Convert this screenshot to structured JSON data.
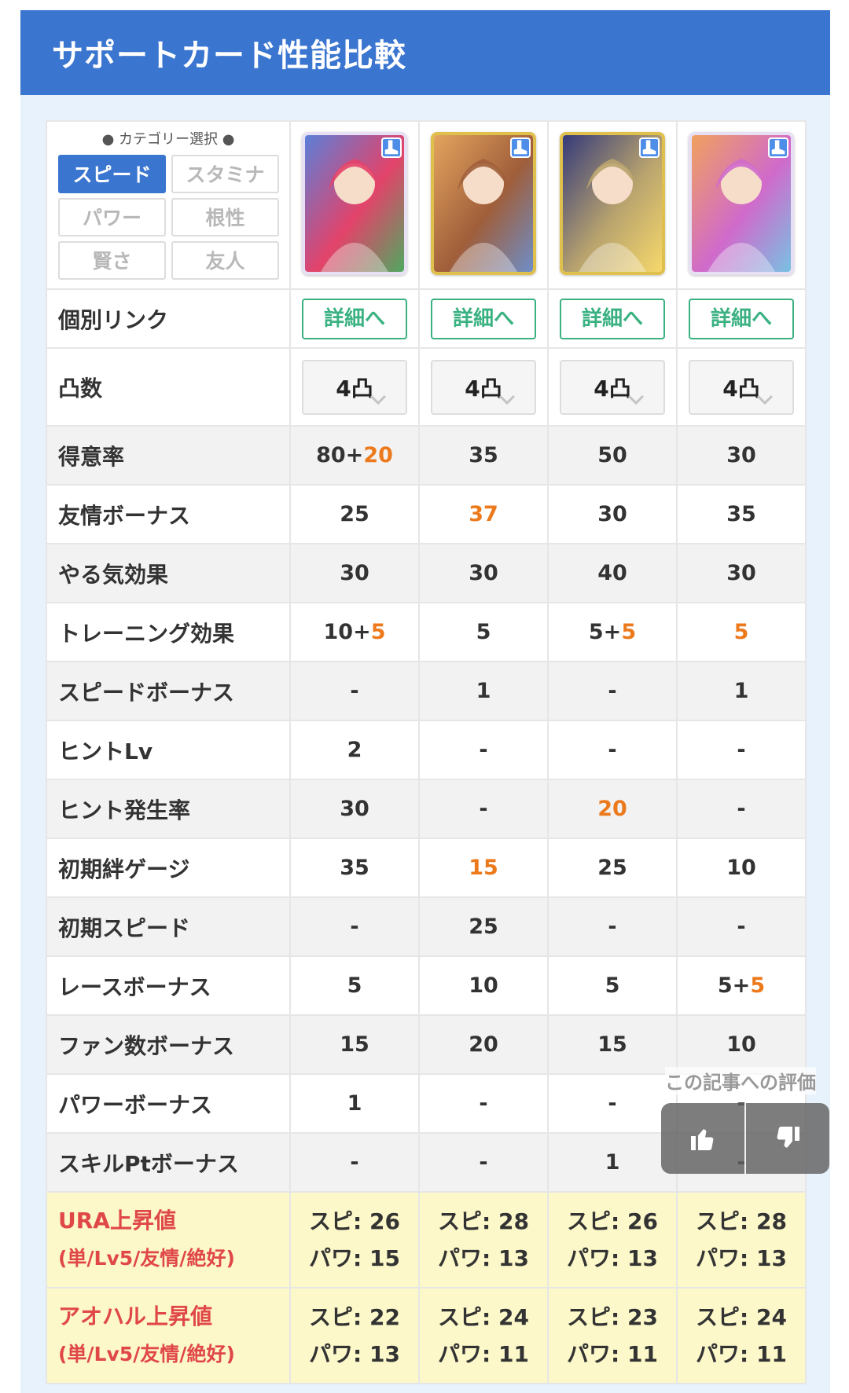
{
  "header": {
    "title": "サポートカード性能比較"
  },
  "category": {
    "title": "● カテゴリー選択 ●",
    "buttons": [
      "スピード",
      "スタミナ",
      "パワー",
      "根性",
      "賢さ",
      "友人"
    ],
    "active": "スピード"
  },
  "cards": [
    {
      "frame": "rainbow",
      "colors": [
        "#5b7fd9",
        "#e3436a",
        "#4fa860"
      ]
    },
    {
      "frame": "gold",
      "colors": [
        "#e3a45e",
        "#a05e3a",
        "#6e8ec8"
      ]
    },
    {
      "frame": "gold",
      "colors": [
        "#353a7a",
        "#b8a36e",
        "#f6d86b"
      ]
    },
    {
      "frame": "rainbow",
      "colors": [
        "#f0a15e",
        "#d06acb",
        "#78c1e3"
      ]
    }
  ],
  "links": {
    "label": "個別リンク",
    "button": "詳細へ"
  },
  "limit": {
    "label": "凸数",
    "values": [
      "4凸",
      "4凸",
      "4凸",
      "4凸"
    ]
  },
  "rows": [
    {
      "label": "得意率",
      "values": [
        [
          "80+",
          "20"
        ],
        [
          "35"
        ],
        [
          "50"
        ],
        [
          "30"
        ]
      ]
    },
    {
      "label": "友情ボーナス",
      "values": [
        [
          "25"
        ],
        [
          "",
          "37"
        ],
        [
          "30"
        ],
        [
          "35"
        ]
      ]
    },
    {
      "label": "やる気効果",
      "values": [
        [
          "30"
        ],
        [
          "30"
        ],
        [
          "40"
        ],
        [
          "30"
        ]
      ]
    },
    {
      "label": "トレーニング効果",
      "values": [
        [
          "10+",
          "5"
        ],
        [
          "5"
        ],
        [
          "5+",
          "5"
        ],
        [
          "",
          "5"
        ]
      ]
    },
    {
      "label": "スピードボーナス",
      "values": [
        [
          "-"
        ],
        [
          "1"
        ],
        [
          "-"
        ],
        [
          "1"
        ]
      ]
    },
    {
      "label": "ヒントLv",
      "values": [
        [
          "2"
        ],
        [
          "-"
        ],
        [
          "-"
        ],
        [
          "-"
        ]
      ]
    },
    {
      "label": "ヒント発生率",
      "values": [
        [
          "30"
        ],
        [
          "-"
        ],
        [
          "",
          "20"
        ],
        [
          "-"
        ]
      ]
    },
    {
      "label": "初期絆ゲージ",
      "values": [
        [
          "35"
        ],
        [
          "",
          "15"
        ],
        [
          "25"
        ],
        [
          "10"
        ]
      ]
    },
    {
      "label": "初期スピード",
      "values": [
        [
          "-"
        ],
        [
          "25"
        ],
        [
          "-"
        ],
        [
          "-"
        ]
      ]
    },
    {
      "label": "レースボーナス",
      "values": [
        [
          "5"
        ],
        [
          "10"
        ],
        [
          "5"
        ],
        [
          "5+",
          "5"
        ]
      ]
    },
    {
      "label": "ファン数ボーナス",
      "values": [
        [
          "15"
        ],
        [
          "20"
        ],
        [
          "15"
        ],
        [
          "10"
        ]
      ]
    },
    {
      "label": "パワーボーナス",
      "values": [
        [
          "1"
        ],
        [
          "-"
        ],
        [
          "-"
        ],
        [
          "-"
        ]
      ]
    },
    {
      "label": "スキルPtボーナス",
      "values": [
        [
          "-"
        ],
        [
          "-"
        ],
        [
          "1"
        ],
        [
          "-"
        ]
      ]
    }
  ],
  "yellow_rows": [
    {
      "label": "URA上昇値",
      "sub": "(単/Lv5/友情/絶好)",
      "values": [
        [
          "スピ: 26",
          "パワ: 15"
        ],
        [
          "スピ: 28",
          "パワ: 13"
        ],
        [
          "スピ: 26",
          "パワ: 13"
        ],
        [
          "スピ: 28",
          "パワ: 13"
        ]
      ]
    },
    {
      "label": "アオハル上昇値",
      "sub": "(単/Lv5/友情/絶好)",
      "values": [
        [
          "スピ: 22",
          "パワ: 13"
        ],
        [
          "スピ: 24",
          "パワ: 11"
        ],
        [
          "スピ: 23",
          "パワ: 11"
        ],
        [
          "スピ: 24",
          "パワ: 11"
        ]
      ]
    }
  ],
  "rating": {
    "label": "この記事への評価",
    "up_icon": "thumbs-up-icon",
    "down_icon": "thumbs-down-icon"
  }
}
